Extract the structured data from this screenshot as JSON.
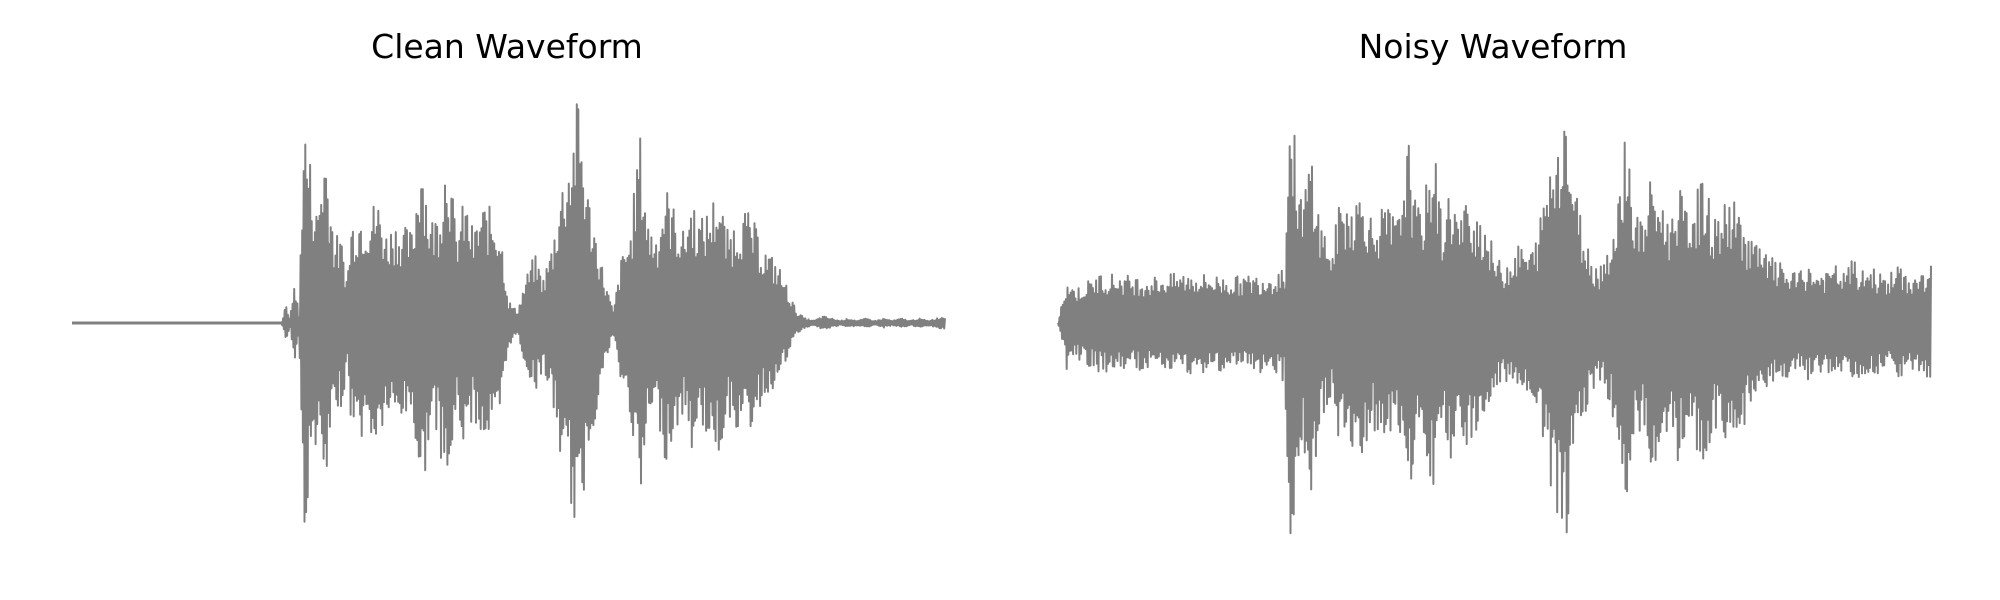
{
  "chart_data": [
    {
      "type": "line",
      "title": "Clean Waveform",
      "xlabel": "",
      "ylabel": "",
      "axes_visible": false,
      "grid": false,
      "ylim": [
        -1.0,
        1.0
      ],
      "line_color": "#808080",
      "series": [
        {
          "envelope_x": [
            0.0,
            0.24,
            0.245,
            0.25,
            0.255,
            0.26,
            0.265,
            0.27,
            0.28,
            0.29,
            0.3,
            0.31,
            0.315,
            0.32,
            0.33,
            0.34,
            0.35,
            0.36,
            0.37,
            0.38,
            0.39,
            0.4,
            0.41,
            0.42,
            0.43,
            0.44,
            0.45,
            0.46,
            0.47,
            0.48,
            0.49,
            0.5,
            0.51,
            0.52,
            0.53,
            0.54,
            0.55,
            0.56,
            0.57,
            0.58,
            0.59,
            0.6,
            0.61,
            0.62,
            0.63,
            0.64,
            0.65,
            0.66,
            0.67,
            0.68,
            0.69,
            0.7,
            0.71,
            0.72,
            0.73,
            0.74,
            0.75,
            0.76,
            0.77,
            0.78,
            0.79,
            0.8,
            0.81,
            0.82,
            0.83,
            0.84,
            0.85,
            0.86,
            0.87,
            0.88,
            0.89,
            0.9,
            0.91,
            0.92,
            0.93,
            0.94,
            0.95,
            0.96,
            0.97,
            0.98,
            0.99,
            1.0
          ],
          "envelope_upper": [
            0.0,
            0.0,
            0.08,
            0.02,
            0.2,
            0.03,
            0.92,
            0.8,
            0.5,
            0.8,
            0.4,
            0.35,
            0.2,
            0.45,
            0.5,
            0.5,
            0.55,
            0.4,
            0.45,
            0.42,
            0.4,
            0.8,
            0.45,
            0.5,
            0.8,
            0.4,
            0.55,
            0.4,
            0.52,
            0.5,
            0.45,
            0.1,
            0.05,
            0.2,
            0.3,
            0.2,
            0.35,
            0.6,
            0.75,
            1.0,
            0.6,
            0.4,
            0.2,
            0.05,
            0.3,
            0.4,
            0.85,
            0.45,
            0.4,
            0.6,
            0.5,
            0.4,
            0.55,
            0.45,
            0.5,
            0.6,
            0.4,
            0.45,
            0.5,
            0.45,
            0.35,
            0.3,
            0.25,
            0.15,
            0.05,
            0.02,
            0.01,
            0.03,
            0.02,
            0.01,
            0.02,
            0.01,
            0.02,
            0.01,
            0.02,
            0.01,
            0.02,
            0.01,
            0.02,
            0.01,
            0.02,
            0.03
          ]
        }
      ]
    },
    {
      "type": "line",
      "title": "Noisy Waveform",
      "xlabel": "",
      "ylabel": "",
      "axes_visible": false,
      "grid": false,
      "ylim": [
        -1.0,
        1.0
      ],
      "line_color": "#808080",
      "series": [
        {
          "envelope_x": [
            0.0,
            0.01,
            0.02,
            0.05,
            0.1,
            0.15,
            0.2,
            0.25,
            0.255,
            0.26,
            0.265,
            0.27,
            0.28,
            0.29,
            0.3,
            0.31,
            0.315,
            0.32,
            0.33,
            0.34,
            0.35,
            0.36,
            0.37,
            0.38,
            0.39,
            0.4,
            0.41,
            0.42,
            0.43,
            0.44,
            0.45,
            0.46,
            0.47,
            0.48,
            0.49,
            0.5,
            0.51,
            0.52,
            0.53,
            0.54,
            0.55,
            0.56,
            0.57,
            0.58,
            0.59,
            0.6,
            0.61,
            0.62,
            0.63,
            0.64,
            0.65,
            0.66,
            0.67,
            0.68,
            0.69,
            0.7,
            0.71,
            0.72,
            0.73,
            0.74,
            0.75,
            0.76,
            0.77,
            0.78,
            0.79,
            0.8,
            0.81,
            0.82,
            0.83,
            0.84,
            0.85,
            0.86,
            0.87,
            0.88,
            0.89,
            0.9,
            0.91,
            0.92,
            0.93,
            0.94,
            0.95,
            0.96,
            0.97,
            0.98,
            0.99,
            1.0
          ],
          "envelope_upper": [
            0.0,
            0.2,
            0.15,
            0.22,
            0.2,
            0.22,
            0.2,
            0.22,
            0.25,
            0.25,
            0.95,
            0.85,
            0.5,
            0.8,
            0.45,
            0.38,
            0.3,
            0.5,
            0.55,
            0.55,
            0.6,
            0.45,
            0.5,
            0.5,
            0.45,
            0.85,
            0.5,
            0.55,
            0.8,
            0.45,
            0.6,
            0.45,
            0.55,
            0.5,
            0.45,
            0.3,
            0.25,
            0.3,
            0.35,
            0.3,
            0.4,
            0.65,
            0.8,
            1.0,
            0.65,
            0.45,
            0.3,
            0.25,
            0.35,
            0.45,
            0.9,
            0.5,
            0.45,
            0.65,
            0.55,
            0.45,
            0.6,
            0.5,
            0.55,
            0.65,
            0.45,
            0.5,
            0.55,
            0.5,
            0.4,
            0.35,
            0.3,
            0.28,
            0.25,
            0.22,
            0.22,
            0.25,
            0.22,
            0.22,
            0.25,
            0.22,
            0.28,
            0.22,
            0.25,
            0.22,
            0.2,
            0.25,
            0.22,
            0.2,
            0.22,
            0.25
          ]
        }
      ]
    }
  ]
}
